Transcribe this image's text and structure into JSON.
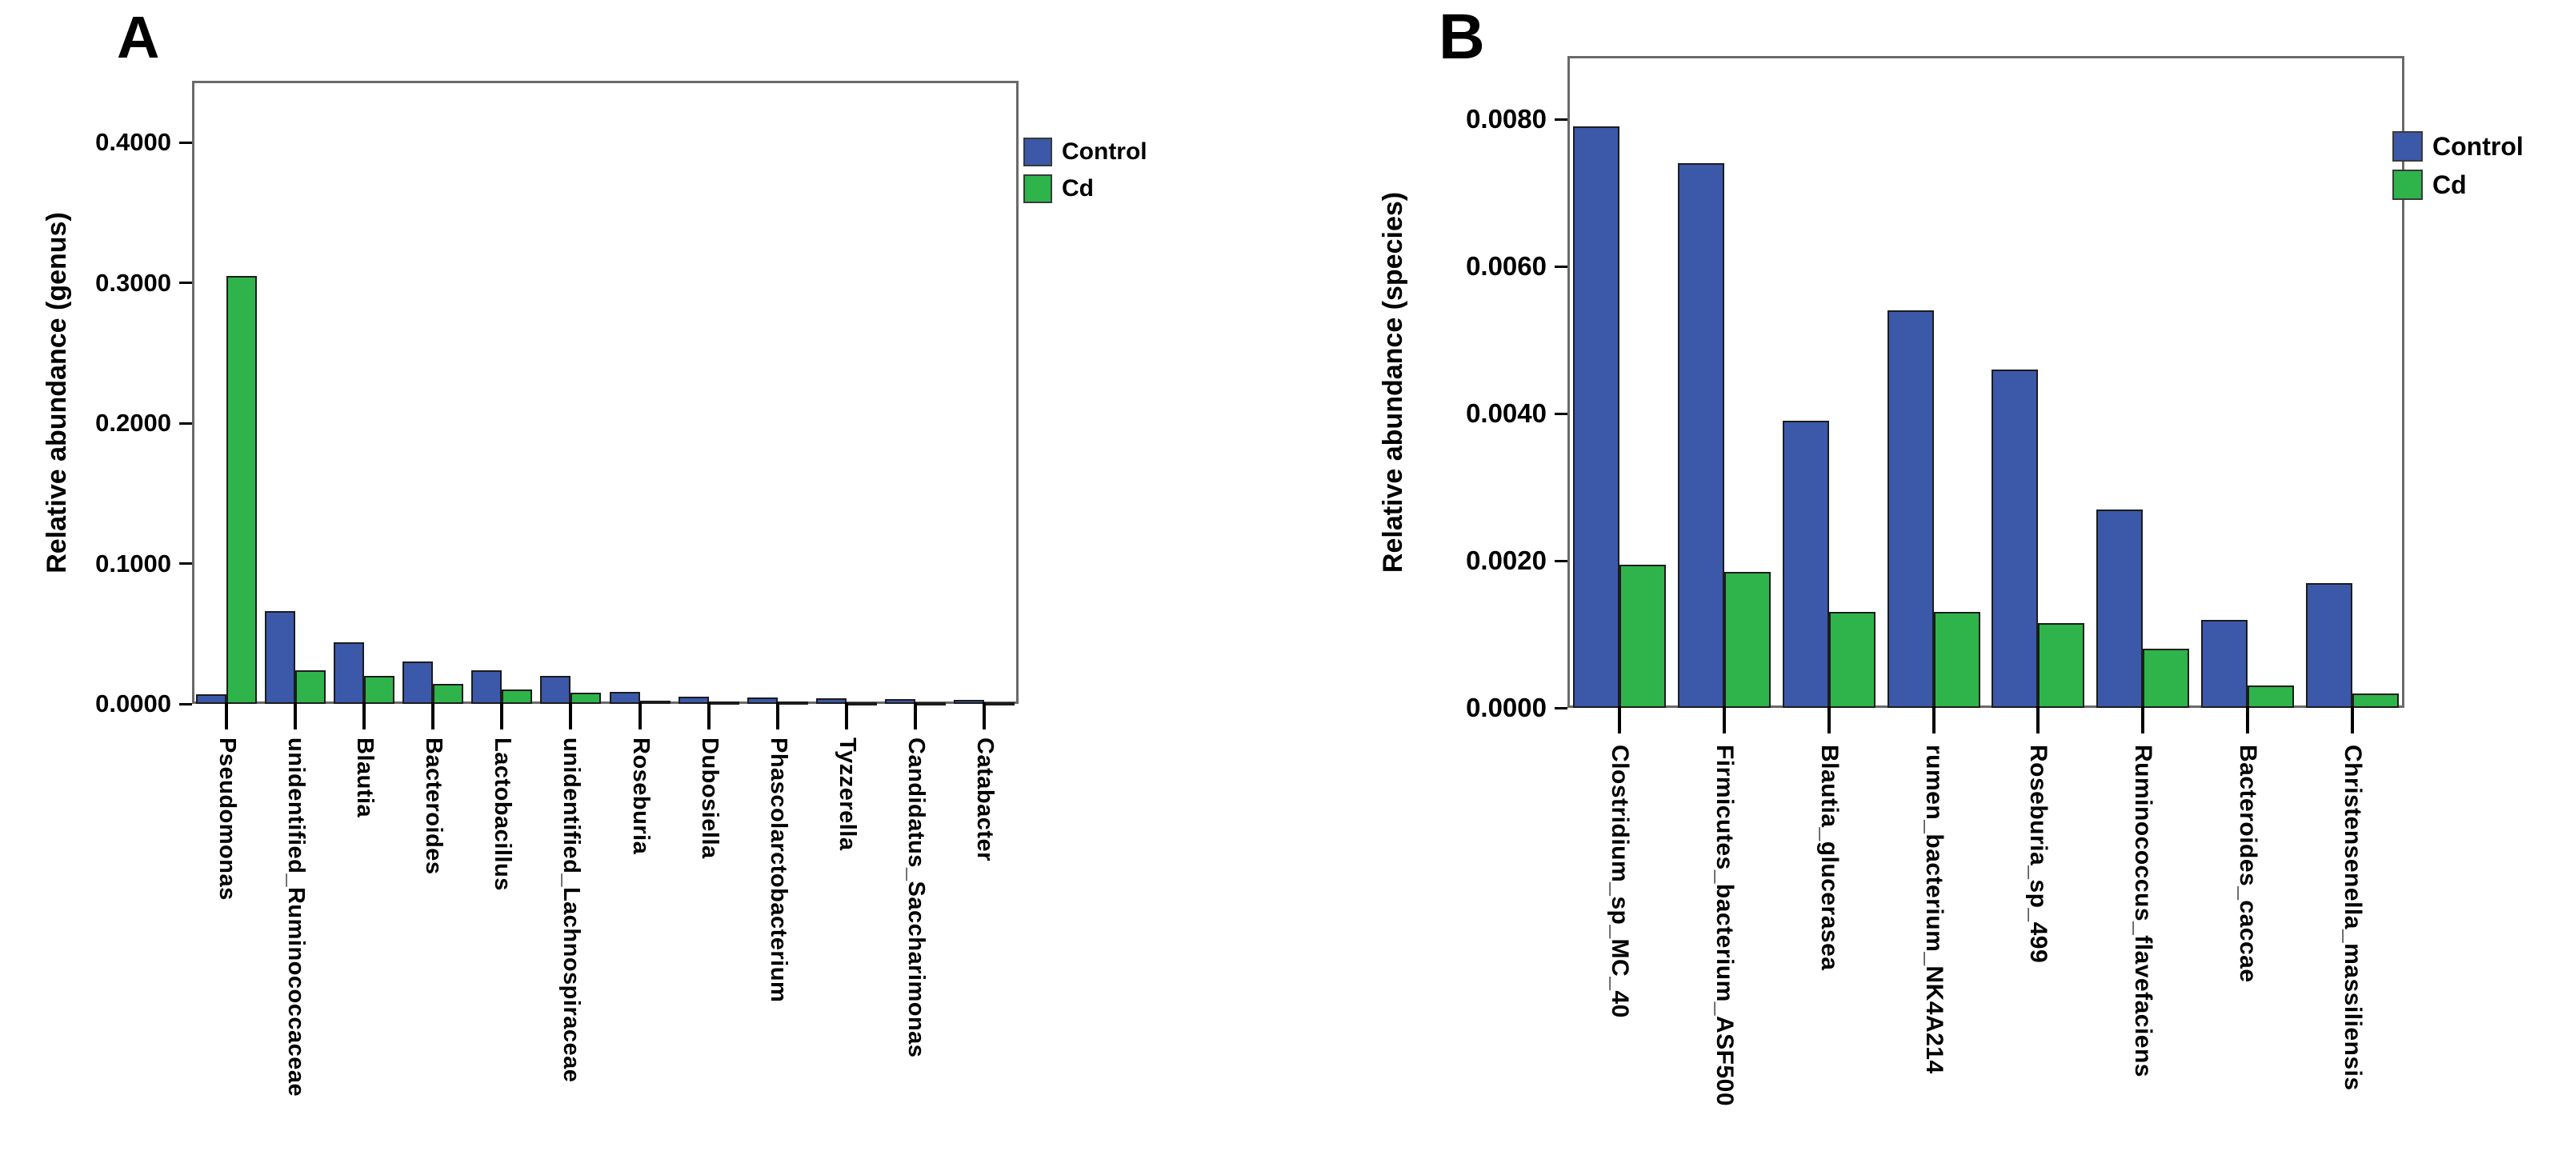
{
  "figure_title": "Relative abundance bar charts, Control vs Cd",
  "legend": {
    "entries": [
      "Control",
      "Cd"
    ],
    "position": "top-right-outside"
  },
  "colors": {
    "control_blue": "#3B58A9",
    "cd_green": "#2EB44A",
    "bar_border": "#1c1c1c",
    "axis_gray": "#6a6a6a",
    "text": "#000000"
  },
  "chart_data": [
    {
      "type": "bar",
      "panel_label": "A",
      "title": "",
      "xlabel": "",
      "ylabel": "Relative abundance (genus)",
      "grid": false,
      "legend_position": "top-right-outside",
      "ylim": [
        0,
        0.444
      ],
      "y_tick_interval": 0.1,
      "y_tick_values": [
        0,
        0.1,
        0.2,
        0.3,
        0.4
      ],
      "y_tick_labels": [
        "0.0000",
        "0.1000",
        "0.2000",
        "0.3000",
        "0.4000"
      ],
      "categories": [
        "Pseudomonas",
        "unidentified_Ruminococcaceae",
        "Blautia",
        "Bacteroides",
        "Lactobacillus",
        "unidentified_Lachnospiraceae",
        "Roseburia",
        "Dubosiella",
        "Phascolarctobacterium",
        "Tyzzerella",
        "Candidatus_Saccharimonas",
        "Catabacter"
      ],
      "series": [
        {
          "name": "Control",
          "color": "#3B58A9",
          "values": [
            0.007,
            0.066,
            0.044,
            0.03,
            0.024,
            0.02,
            0.0086,
            0.0054,
            0.0045,
            0.004,
            0.0035,
            0.003
          ]
        },
        {
          "name": "Cd",
          "color": "#2EB44A",
          "values": [
            0.305,
            0.024,
            0.02,
            0.0145,
            0.0105,
            0.008,
            0.0024,
            0.0018,
            0.0015,
            0.0013,
            0.001,
            0.0008
          ]
        }
      ]
    },
    {
      "type": "bar",
      "panel_label": "B",
      "title": "",
      "xlabel": "",
      "ylabel": "Relative abundance (species)",
      "grid": false,
      "legend_position": "top-right-outside",
      "ylim": [
        0,
        0.00886
      ],
      "y_tick_interval": 0.002,
      "y_tick_values": [
        0,
        0.002,
        0.004,
        0.006,
        0.008
      ],
      "y_tick_labels": [
        "0.0000",
        "0.0020",
        "0.0040",
        "0.0060",
        "0.0080"
      ],
      "categories": [
        "Clostridium_sp_MC_40",
        "Firmicutes_bacterium_ASF500",
        "Blautia_glucerasea",
        "rumen_bacterium_NK4A214",
        "Roseburia_sp_499",
        "Ruminococcus_flavefaciens",
        "Bacteroides_caccae",
        "Christensenella_massiliensis"
      ],
      "series": [
        {
          "name": "Control",
          "color": "#3B58A9",
          "values": [
            0.0079,
            0.0074,
            0.0039,
            0.0054,
            0.0046,
            0.0027,
            0.0012,
            0.0017
          ]
        },
        {
          "name": "Cd",
          "color": "#2EB44A",
          "values": [
            0.00195,
            0.00185,
            0.0013,
            0.0013,
            0.00115,
            0.0008,
            0.0003,
            0.0002
          ]
        }
      ]
    }
  ]
}
